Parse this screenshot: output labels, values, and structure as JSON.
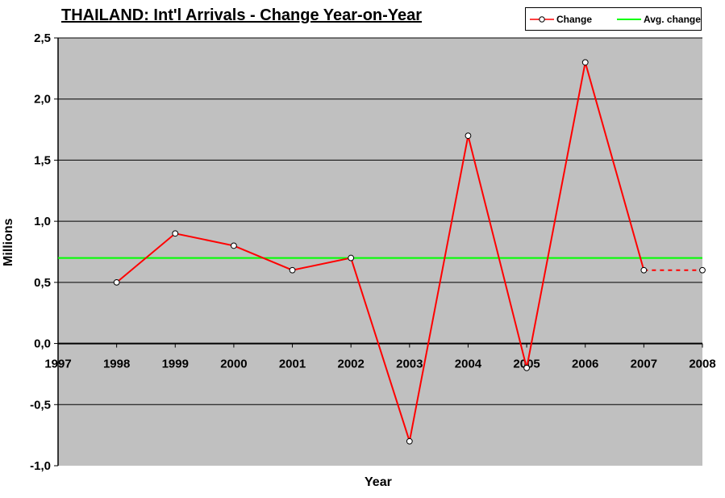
{
  "chart_data": {
    "type": "line",
    "title": "THAILAND: Int'l Arrivals - Change Year-on-Year",
    "xlabel": "Year",
    "ylabel": "Millions",
    "x_ticks": [
      "1997",
      "1998",
      "1999",
      "2000",
      "2001",
      "2002",
      "2003",
      "2004",
      "2005",
      "2006",
      "2007",
      "2008"
    ],
    "y_ticks": [
      "2,5",
      "2,0",
      "1,5",
      "1,0",
      "0,5",
      "0,0",
      "-0,5",
      "-1,0"
    ],
    "xlim": [
      1997,
      2008
    ],
    "ylim": [
      -1.0,
      2.5
    ],
    "grid": true,
    "legend_position": "top-right",
    "series": [
      {
        "name": "Change",
        "color": "#ff0000",
        "x": [
          1998,
          1999,
          2000,
          2001,
          2002,
          2003,
          2004,
          2005,
          2006,
          2007,
          2008
        ],
        "y": [
          0.5,
          0.9,
          0.8,
          0.6,
          0.7,
          -0.8,
          1.7,
          -0.2,
          2.3,
          0.6,
          0.6
        ],
        "dashed_from_x": 2007
      },
      {
        "name": "Avg. change",
        "color": "#00ff00",
        "value": 0.7
      }
    ]
  },
  "colors": {
    "plot_background": "#c0c0c0",
    "gridline": "#000000",
    "change_line": "#ff0000",
    "avg_line": "#00ff00"
  }
}
